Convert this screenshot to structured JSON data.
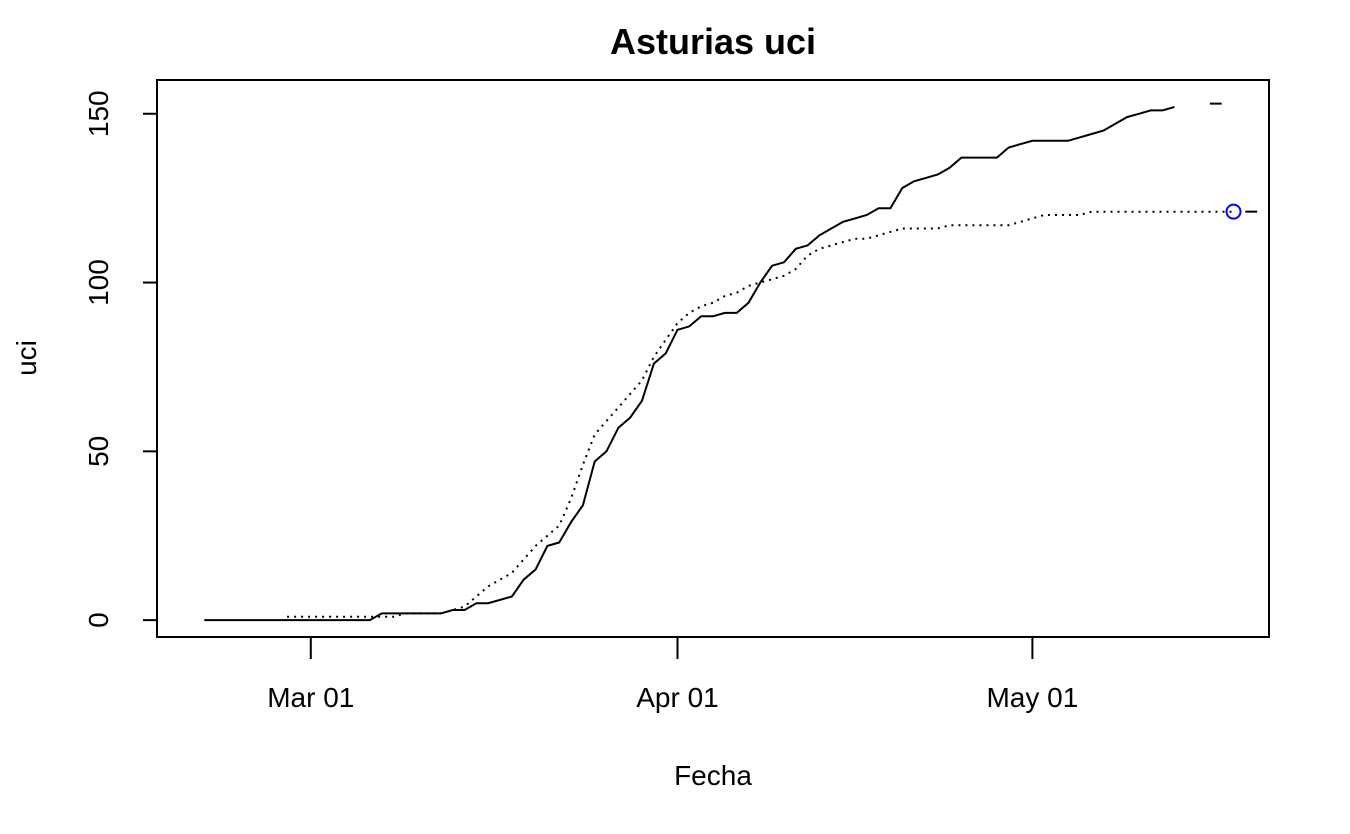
{
  "chart_data": {
    "type": "line",
    "title": "Asturias uci",
    "xlabel": "Fecha",
    "ylabel": "uci",
    "ylim": [
      -5,
      160
    ],
    "xlim": [
      "2020-02-17",
      "2020-05-21"
    ],
    "grid": false,
    "x_ticks": [
      {
        "date": "2020-03-01",
        "label": "Mar 01"
      },
      {
        "date": "2020-04-01",
        "label": "Apr 01"
      },
      {
        "date": "2020-05-01",
        "label": "May 01"
      }
    ],
    "y_ticks": [
      0,
      50,
      100,
      150
    ],
    "series": [
      {
        "line_style": "solid",
        "color": "#000000",
        "points": [
          [
            "2020-02-21",
            0
          ],
          [
            "2020-03-06",
            0
          ],
          [
            "2020-03-07",
            2
          ],
          [
            "2020-03-12",
            2
          ],
          [
            "2020-03-13",
            3
          ],
          [
            "2020-03-14",
            3
          ],
          [
            "2020-03-15",
            5
          ],
          [
            "2020-03-16",
            5
          ],
          [
            "2020-03-18",
            7
          ],
          [
            "2020-03-19",
            12
          ],
          [
            "2020-03-20",
            15
          ],
          [
            "2020-03-21",
            22
          ],
          [
            "2020-03-22",
            23
          ],
          [
            "2020-03-23",
            29
          ],
          [
            "2020-03-24",
            34
          ],
          [
            "2020-03-25",
            47
          ],
          [
            "2020-03-26",
            50
          ],
          [
            "2020-03-27",
            57
          ],
          [
            "2020-03-28",
            60
          ],
          [
            "2020-03-29",
            65
          ],
          [
            "2020-03-30",
            76
          ],
          [
            "2020-03-31",
            79
          ],
          [
            "2020-04-01",
            86
          ],
          [
            "2020-04-02",
            87
          ],
          [
            "2020-04-03",
            90
          ],
          [
            "2020-04-04",
            90
          ],
          [
            "2020-04-05",
            91
          ],
          [
            "2020-04-06",
            91
          ],
          [
            "2020-04-07",
            94
          ],
          [
            "2020-04-08",
            100
          ],
          [
            "2020-04-09",
            105
          ],
          [
            "2020-04-10",
            106
          ],
          [
            "2020-04-11",
            110
          ],
          [
            "2020-04-12",
            111
          ],
          [
            "2020-04-13",
            114
          ],
          [
            "2020-04-14",
            116
          ],
          [
            "2020-04-15",
            118
          ],
          [
            "2020-04-16",
            119
          ],
          [
            "2020-04-17",
            120
          ],
          [
            "2020-04-18",
            122
          ],
          [
            "2020-04-19",
            122
          ],
          [
            "2020-04-20",
            128
          ],
          [
            "2020-04-21",
            130
          ],
          [
            "2020-04-22",
            131
          ],
          [
            "2020-04-23",
            132
          ],
          [
            "2020-04-24",
            134
          ],
          [
            "2020-04-25",
            137
          ],
          [
            "2020-04-28",
            137
          ],
          [
            "2020-04-29",
            140
          ],
          [
            "2020-04-30",
            141
          ],
          [
            "2020-05-01",
            142
          ],
          [
            "2020-05-04",
            142
          ],
          [
            "2020-05-05",
            143
          ],
          [
            "2020-05-06",
            144
          ],
          [
            "2020-05-07",
            145
          ],
          [
            "2020-05-08",
            147
          ],
          [
            "2020-05-09",
            149
          ],
          [
            "2020-05-10",
            150
          ],
          [
            "2020-05-11",
            151
          ],
          [
            "2020-05-12",
            151
          ],
          [
            "2020-05-13",
            152
          ]
        ],
        "extra_segments": [
          [
            [
              "2020-05-16",
              153
            ],
            [
              "2020-05-17",
              153
            ]
          ],
          [
            [
              "2020-05-19",
              121
            ],
            [
              "2020-05-20",
              121
            ]
          ]
        ]
      },
      {
        "line_style": "dotted",
        "color": "#000000",
        "points": [
          [
            "2020-02-28",
            1
          ],
          [
            "2020-03-06",
            1
          ],
          [
            "2020-03-08",
            1
          ],
          [
            "2020-03-09",
            2
          ],
          [
            "2020-03-12",
            2
          ],
          [
            "2020-03-13",
            3
          ],
          [
            "2020-03-14",
            4
          ],
          [
            "2020-03-15",
            7
          ],
          [
            "2020-03-16",
            10
          ],
          [
            "2020-03-17",
            12
          ],
          [
            "2020-03-18",
            14
          ],
          [
            "2020-03-19",
            18
          ],
          [
            "2020-03-20",
            22
          ],
          [
            "2020-03-21",
            25
          ],
          [
            "2020-03-22",
            28
          ],
          [
            "2020-03-23",
            36
          ],
          [
            "2020-03-24",
            46
          ],
          [
            "2020-03-25",
            55
          ],
          [
            "2020-03-26",
            59
          ],
          [
            "2020-03-27",
            63
          ],
          [
            "2020-03-28",
            67
          ],
          [
            "2020-03-29",
            71
          ],
          [
            "2020-03-30",
            78
          ],
          [
            "2020-03-31",
            83
          ],
          [
            "2020-04-01",
            88
          ],
          [
            "2020-04-02",
            91
          ],
          [
            "2020-04-03",
            93
          ],
          [
            "2020-04-04",
            94
          ],
          [
            "2020-04-05",
            96
          ],
          [
            "2020-04-06",
            97
          ],
          [
            "2020-04-07",
            99
          ],
          [
            "2020-04-08",
            100
          ],
          [
            "2020-04-09",
            101
          ],
          [
            "2020-04-10",
            102
          ],
          [
            "2020-04-11",
            104
          ],
          [
            "2020-04-12",
            108
          ],
          [
            "2020-04-13",
            110
          ],
          [
            "2020-04-14",
            111
          ],
          [
            "2020-04-15",
            112
          ],
          [
            "2020-04-16",
            113
          ],
          [
            "2020-04-17",
            113
          ],
          [
            "2020-04-18",
            114
          ],
          [
            "2020-04-19",
            115
          ],
          [
            "2020-04-20",
            116
          ],
          [
            "2020-04-23",
            116
          ],
          [
            "2020-04-24",
            117
          ],
          [
            "2020-04-29",
            117
          ],
          [
            "2020-04-30",
            118
          ],
          [
            "2020-05-01",
            119
          ],
          [
            "2020-05-02",
            120
          ],
          [
            "2020-05-05",
            120
          ],
          [
            "2020-05-06",
            121
          ],
          [
            "2020-05-18",
            121
          ]
        ]
      }
    ],
    "marker": {
      "date": "2020-05-18",
      "value": 121,
      "shape": "circle",
      "color": "#0000ff"
    }
  }
}
